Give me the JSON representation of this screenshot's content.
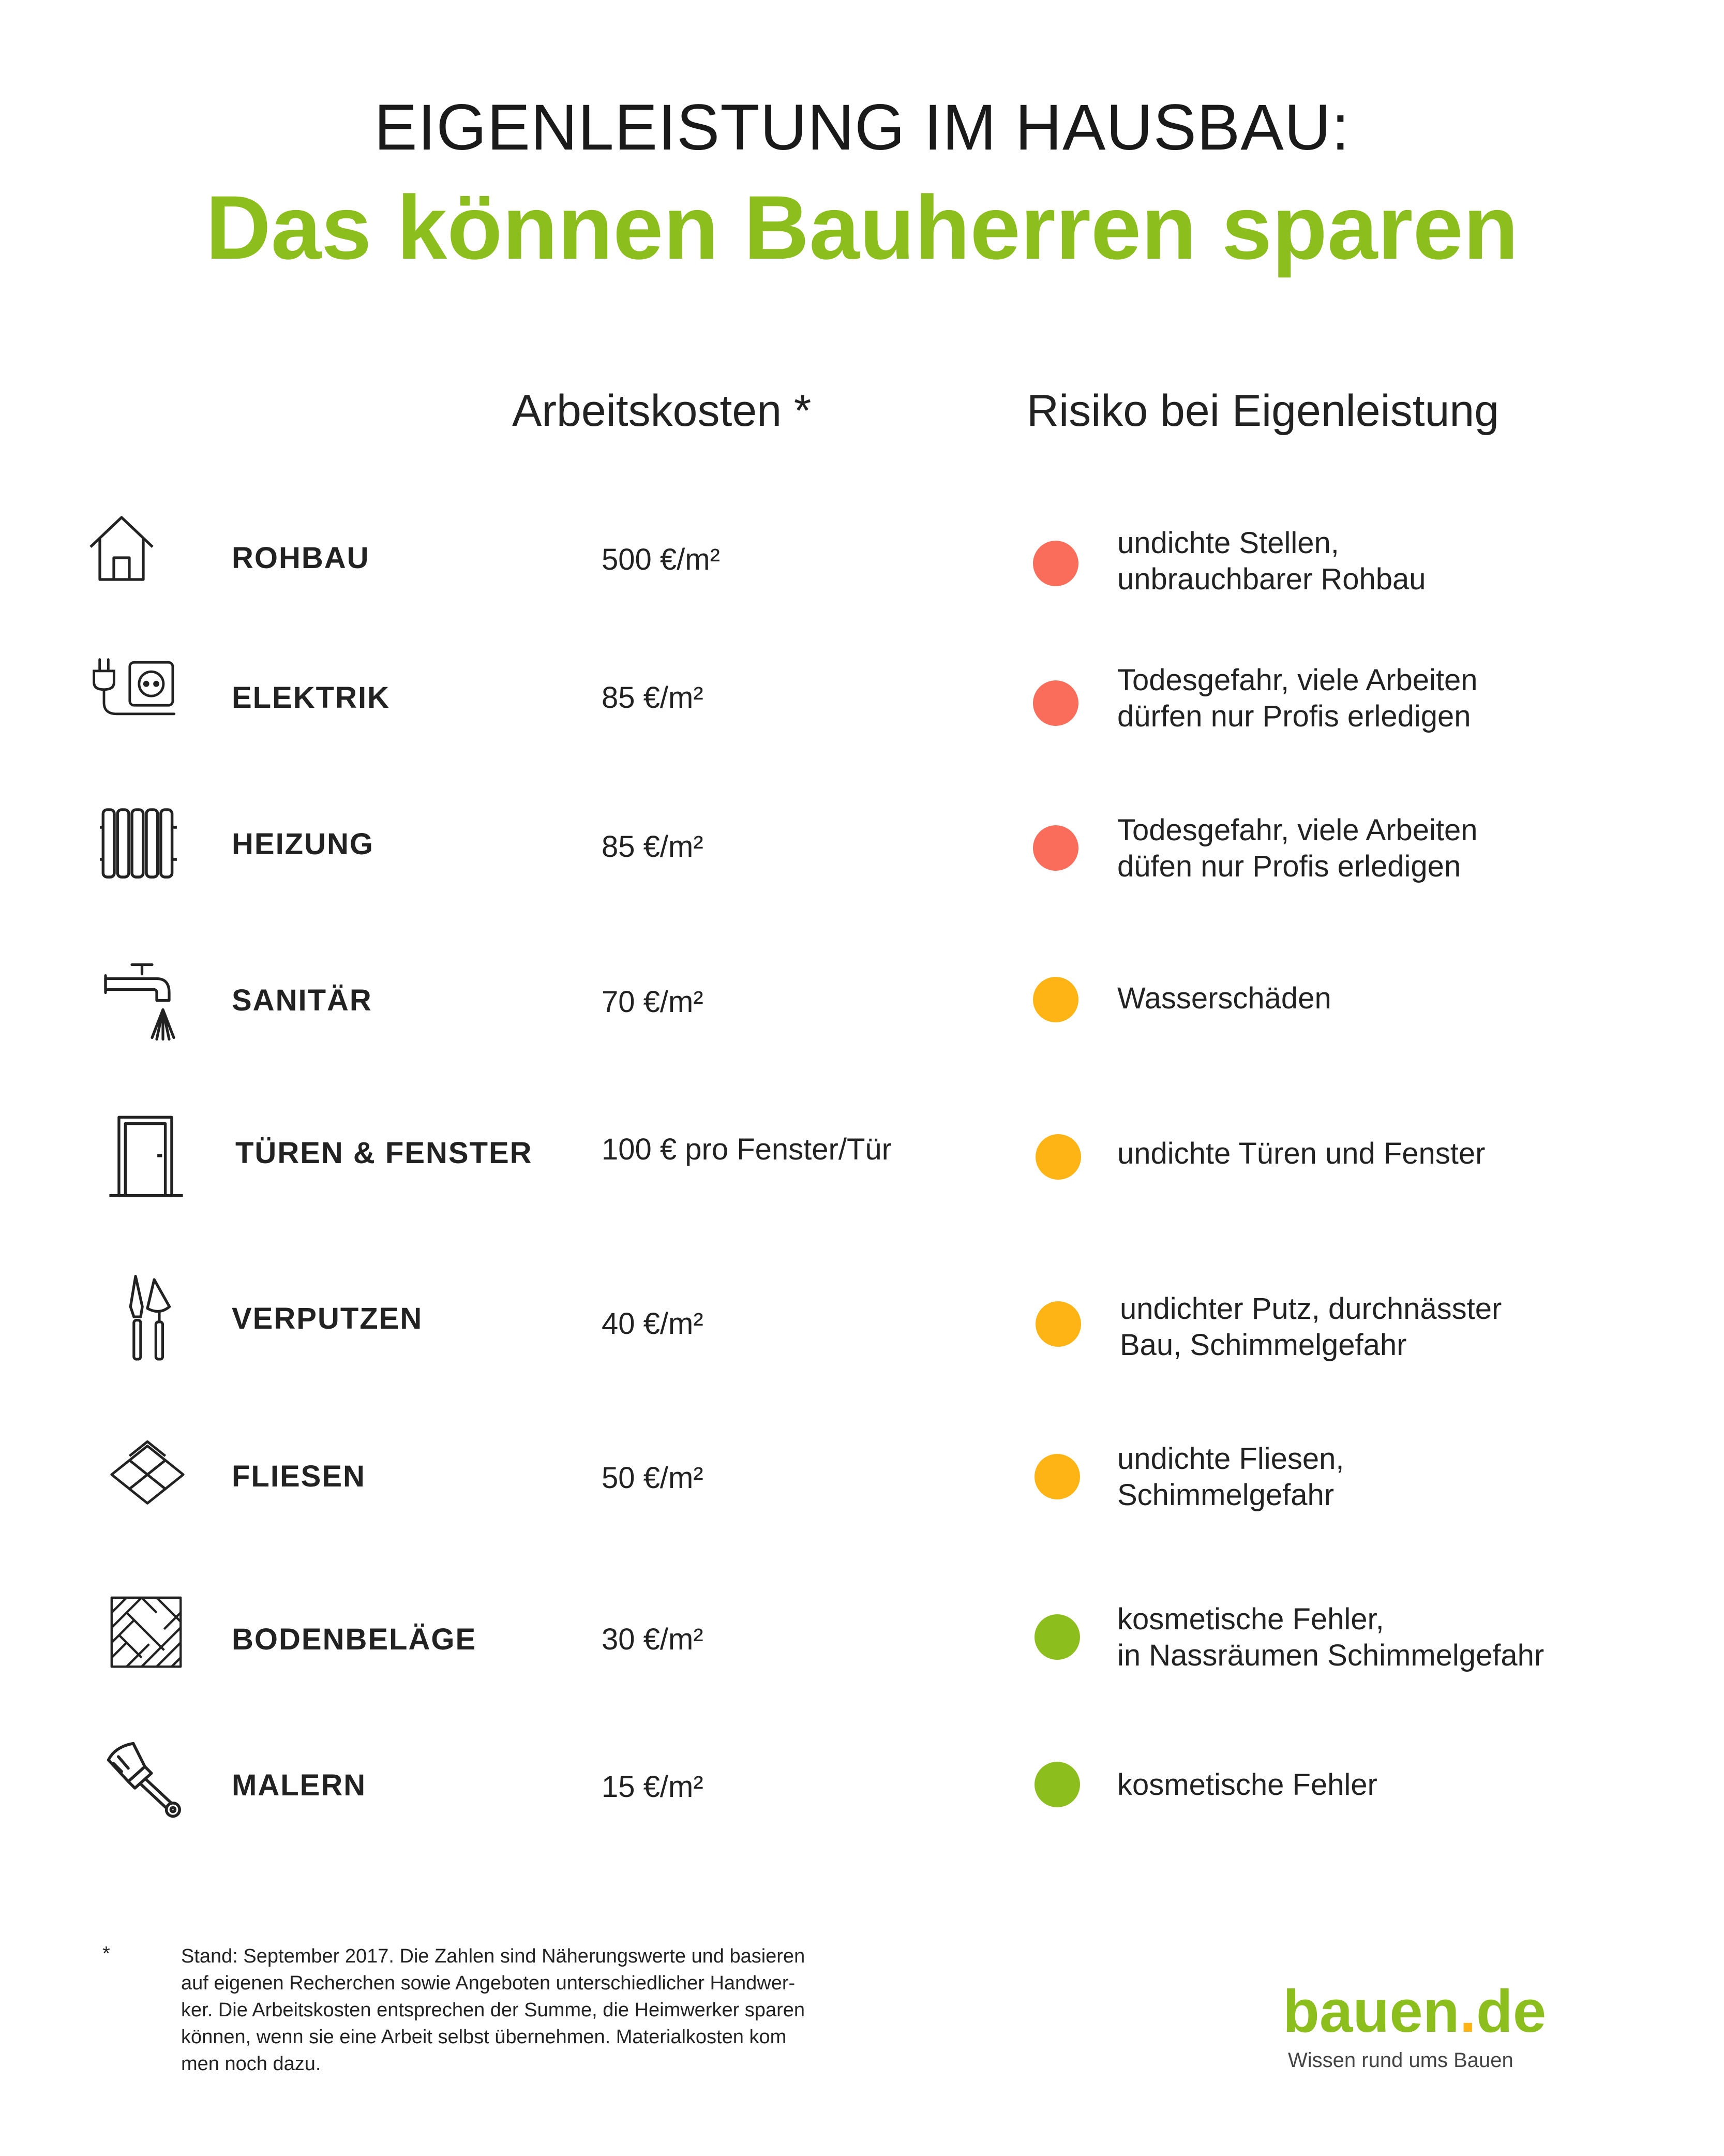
{
  "title_line1": "EIGENLEISTUNG IM HAUSBAU:",
  "title_line2": "Das können Bauherren sparen",
  "col_cost": "Arbeitskosten *",
  "col_risk": "Risiko bei Eigenleistung",
  "colors": {
    "accent": "#8cbe1e",
    "risk_high": "#f96d5a",
    "risk_medium": "#fdb414",
    "risk_low": "#8cbe1e"
  },
  "rows": [
    {
      "icon": "house-icon",
      "category": "ROHBAU",
      "cost": "500 €/m²",
      "risk_level": "high",
      "risk_lines": [
        "undichte Stellen,",
        "unbrauchbarer Rohbau"
      ]
    },
    {
      "icon": "plug-socket-icon",
      "category": "ELEKTRIK",
      "cost": "85 €/m²",
      "risk_level": "high",
      "risk_lines": [
        "Todesgefahr, viele Arbeiten",
        "dürfen nur Profis erledigen"
      ]
    },
    {
      "icon": "radiator-icon",
      "category": "HEIZUNG",
      "cost": "85 €/m²",
      "risk_level": "high",
      "risk_lines": [
        "Todesgefahr, viele Arbeiten",
        "düfen nur Profis erledigen"
      ]
    },
    {
      "icon": "faucet-icon",
      "category": "SANITÄR",
      "cost": "70 €/m²",
      "risk_level": "medium",
      "risk_lines": [
        "Wasserschäden"
      ]
    },
    {
      "icon": "door-icon",
      "category": "TÜREN & FENSTER",
      "cost": "100 € pro Fenster/Tür",
      "risk_level": "medium",
      "risk_lines": [
        "undichte Türen und Fenster"
      ]
    },
    {
      "icon": "trowel-icon",
      "category": "VERPUTZEN",
      "cost": "40 €/m²",
      "risk_level": "medium",
      "risk_lines": [
        "undichter Putz, durchnässter",
        "Bau, Schimmelgefahr"
      ]
    },
    {
      "icon": "tiles-icon",
      "category": "FLIESEN",
      "cost": "50 €/m²",
      "risk_level": "medium",
      "risk_lines": [
        "undichte Fliesen,",
        "Schimmelgefahr"
      ]
    },
    {
      "icon": "parquet-icon",
      "category": "BODENBELÄGE",
      "cost": "30 €/m²",
      "risk_level": "low",
      "risk_lines": [
        "kosmetische Fehler,",
        "in Nassräumen Schimmelgefahr"
      ]
    },
    {
      "icon": "paintbrush-icon",
      "category": "MALERN",
      "cost": "15 €/m²",
      "risk_level": "low",
      "risk_lines": [
        "kosmetische Fehler"
      ]
    }
  ],
  "footnote_mark": "*",
  "footnote_lines": [
    "Stand: September 2017. Die Zahlen sind Näherungswerte und basieren",
    "auf eigenen Recherchen sowie Angeboten unterschiedlicher Handwer-",
    "ker. Die Arbeitskosten entsprechen der Summe, die Heimwerker sparen",
    "können, wenn sie eine Arbeit selbst übernehmen. Materialkosten kom",
    "men noch dazu."
  ],
  "logo": {
    "main": "bauen",
    "dot": ".",
    "suffix": "de",
    "tagline": "Wissen rund ums Bauen"
  }
}
